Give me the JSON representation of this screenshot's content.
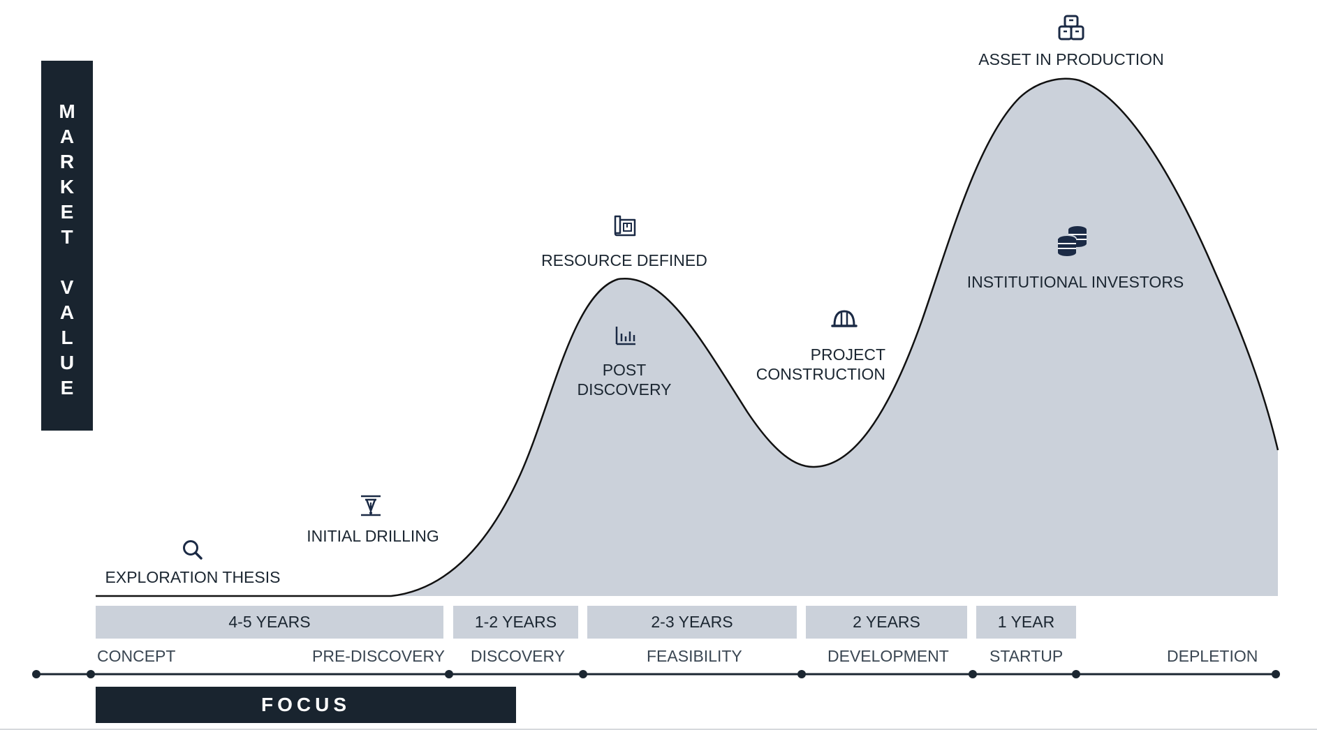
{
  "y_axis": {
    "label": "MARKET\n\nVALUE",
    "text": "M\nA\nR\nK\nE\nT\n \nV\nA\nL\nU\nE"
  },
  "milestones": {
    "exploration_thesis": "EXPLORATION THESIS",
    "initial_drilling": "INITIAL DRILLING",
    "resource_defined": "RESOURCE DEFINED",
    "post_discovery_1": "POST",
    "post_discovery_2": "DISCOVERY",
    "project_construction_1": "PROJECT",
    "project_construction_2": "CONSTRUCTION",
    "asset_in_production": "ASSET IN PRODUCTION",
    "institutional_investors": "INSTITUTIONAL INVESTORS"
  },
  "durations": [
    "4-5 YEARS",
    "1-2 YEARS",
    "2-3 YEARS",
    "2 YEARS",
    "1 YEAR"
  ],
  "phases": {
    "concept": "CONCEPT",
    "pre_discovery": "PRE-DISCOVERY",
    "discovery": "DISCOVERY",
    "feasibility": "FEASIBILITY",
    "development": "DEVELOPMENT",
    "startup": "STARTUP",
    "depletion": "DEPLETION"
  },
  "focus_label": "FOCUS",
  "icons": [
    "search-icon",
    "drill-icon",
    "blueprint-icon",
    "bar-chart-icon",
    "hard-hat-icon",
    "boxes-icon",
    "coins-icon"
  ],
  "colors": {
    "dark": "#19242f",
    "area_fill": "#cbd1da",
    "curve": "#111111",
    "pill": "#cbd1da"
  }
}
